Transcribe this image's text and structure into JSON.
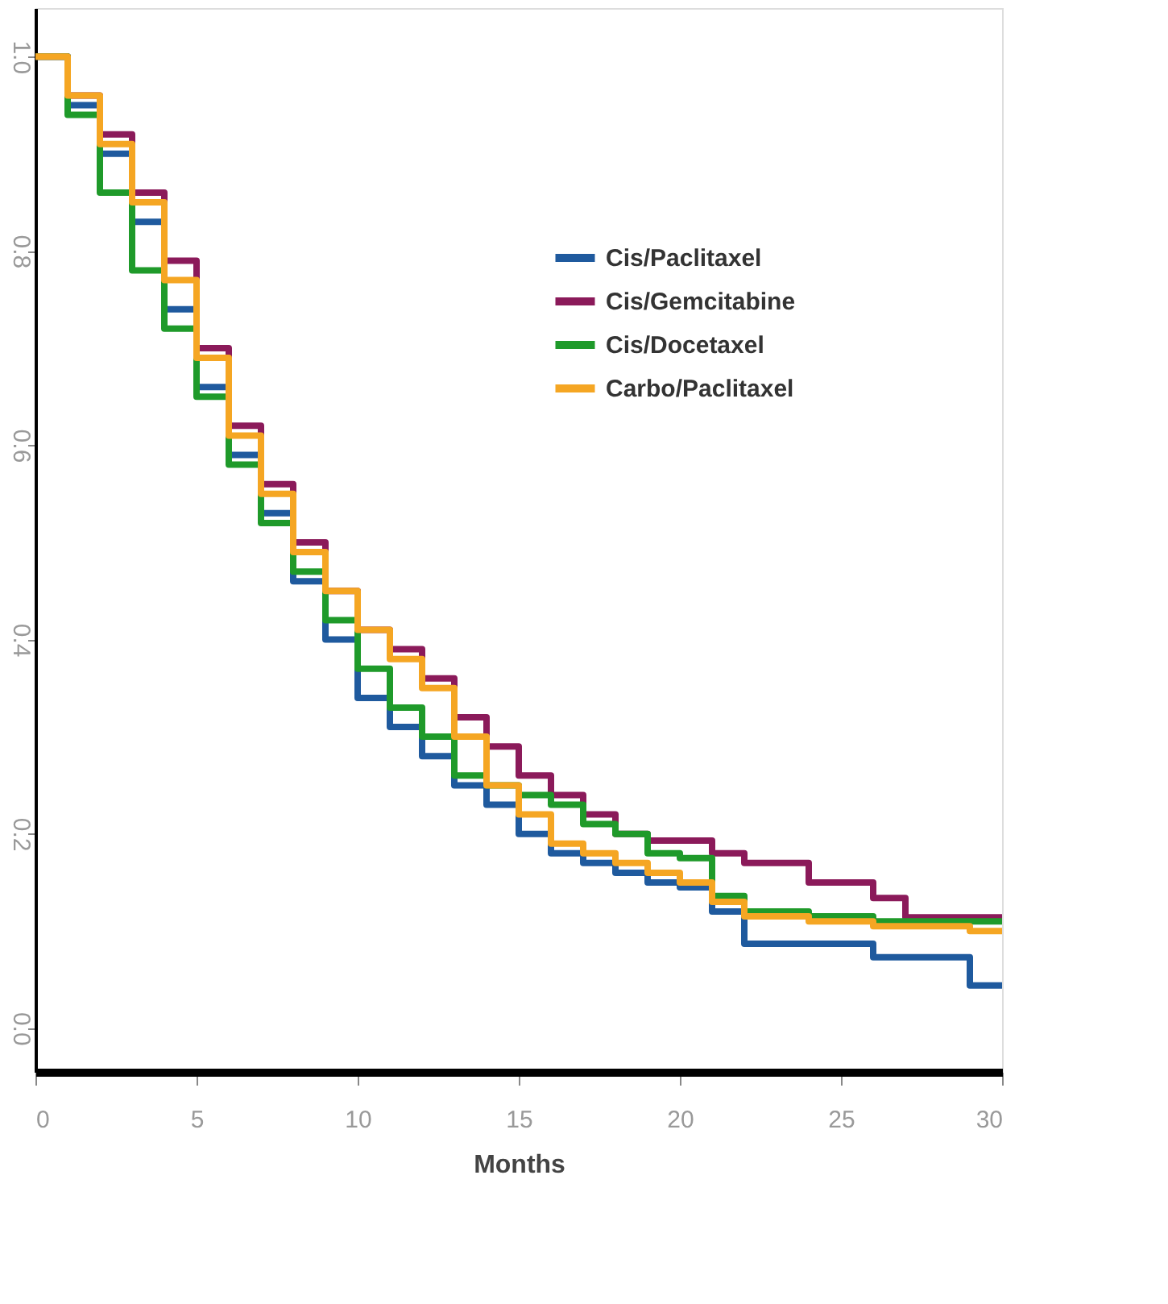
{
  "chart_data": {
    "type": "step",
    "xlabel": "Months",
    "xlim": [
      0,
      30
    ],
    "xticks": [
      0,
      5,
      10,
      15,
      20,
      25,
      30
    ],
    "ylim": [
      -0.045,
      1.05
    ],
    "yticks": [
      {
        "value": 0,
        "label": "0.0"
      },
      0.2,
      0.4,
      0.6,
      0.8,
      {
        "value": 1,
        "label": "1.0"
      }
    ],
    "grid": false,
    "legend": "top right",
    "line_style": "solid",
    "marker": "none",
    "x": [
      0,
      1,
      2,
      3,
      4,
      5,
      6,
      7,
      8,
      9,
      10,
      11,
      12,
      13,
      14,
      15,
      16,
      17,
      18,
      19,
      20,
      21,
      22,
      24,
      26,
      27,
      29,
      30
    ],
    "series": [
      {
        "name": "Cis/Paclitaxel",
        "color": "#1f5a9e",
        "values": [
          1.0,
          0.95,
          0.9,
          0.83,
          0.74,
          0.66,
          0.59,
          0.53,
          0.46,
          0.4,
          0.34,
          0.31,
          0.28,
          0.25,
          0.23,
          0.2,
          0.18,
          0.17,
          0.16,
          0.15,
          0.145,
          0.12,
          0.087,
          0.087,
          0.073,
          0.073,
          0.044,
          0.044
        ]
      },
      {
        "name": "Cis/Gemcitabine",
        "color": "#8b1a5a",
        "values": [
          1.0,
          0.96,
          0.92,
          0.86,
          0.79,
          0.7,
          0.62,
          0.56,
          0.5,
          0.45,
          0.41,
          0.39,
          0.36,
          0.32,
          0.29,
          0.26,
          0.24,
          0.22,
          0.2,
          0.193,
          0.193,
          0.18,
          0.17,
          0.15,
          0.134,
          0.114,
          0.114,
          0.114
        ]
      },
      {
        "name": "Cis/Docetaxel",
        "color": "#1f9a2a",
        "values": [
          1.0,
          0.94,
          0.86,
          0.78,
          0.72,
          0.65,
          0.58,
          0.52,
          0.47,
          0.42,
          0.37,
          0.33,
          0.3,
          0.26,
          0.25,
          0.24,
          0.23,
          0.21,
          0.2,
          0.18,
          0.175,
          0.136,
          0.12,
          0.115,
          0.11,
          0.11,
          0.11,
          0.11
        ]
      },
      {
        "name": "Carbo/Paclitaxel",
        "color": "#f5a623",
        "values": [
          1.0,
          0.96,
          0.91,
          0.85,
          0.77,
          0.69,
          0.61,
          0.55,
          0.49,
          0.45,
          0.41,
          0.38,
          0.35,
          0.3,
          0.25,
          0.22,
          0.19,
          0.18,
          0.17,
          0.16,
          0.15,
          0.13,
          0.115,
          0.11,
          0.105,
          0.105,
          0.1,
          0.1
        ]
      }
    ]
  }
}
